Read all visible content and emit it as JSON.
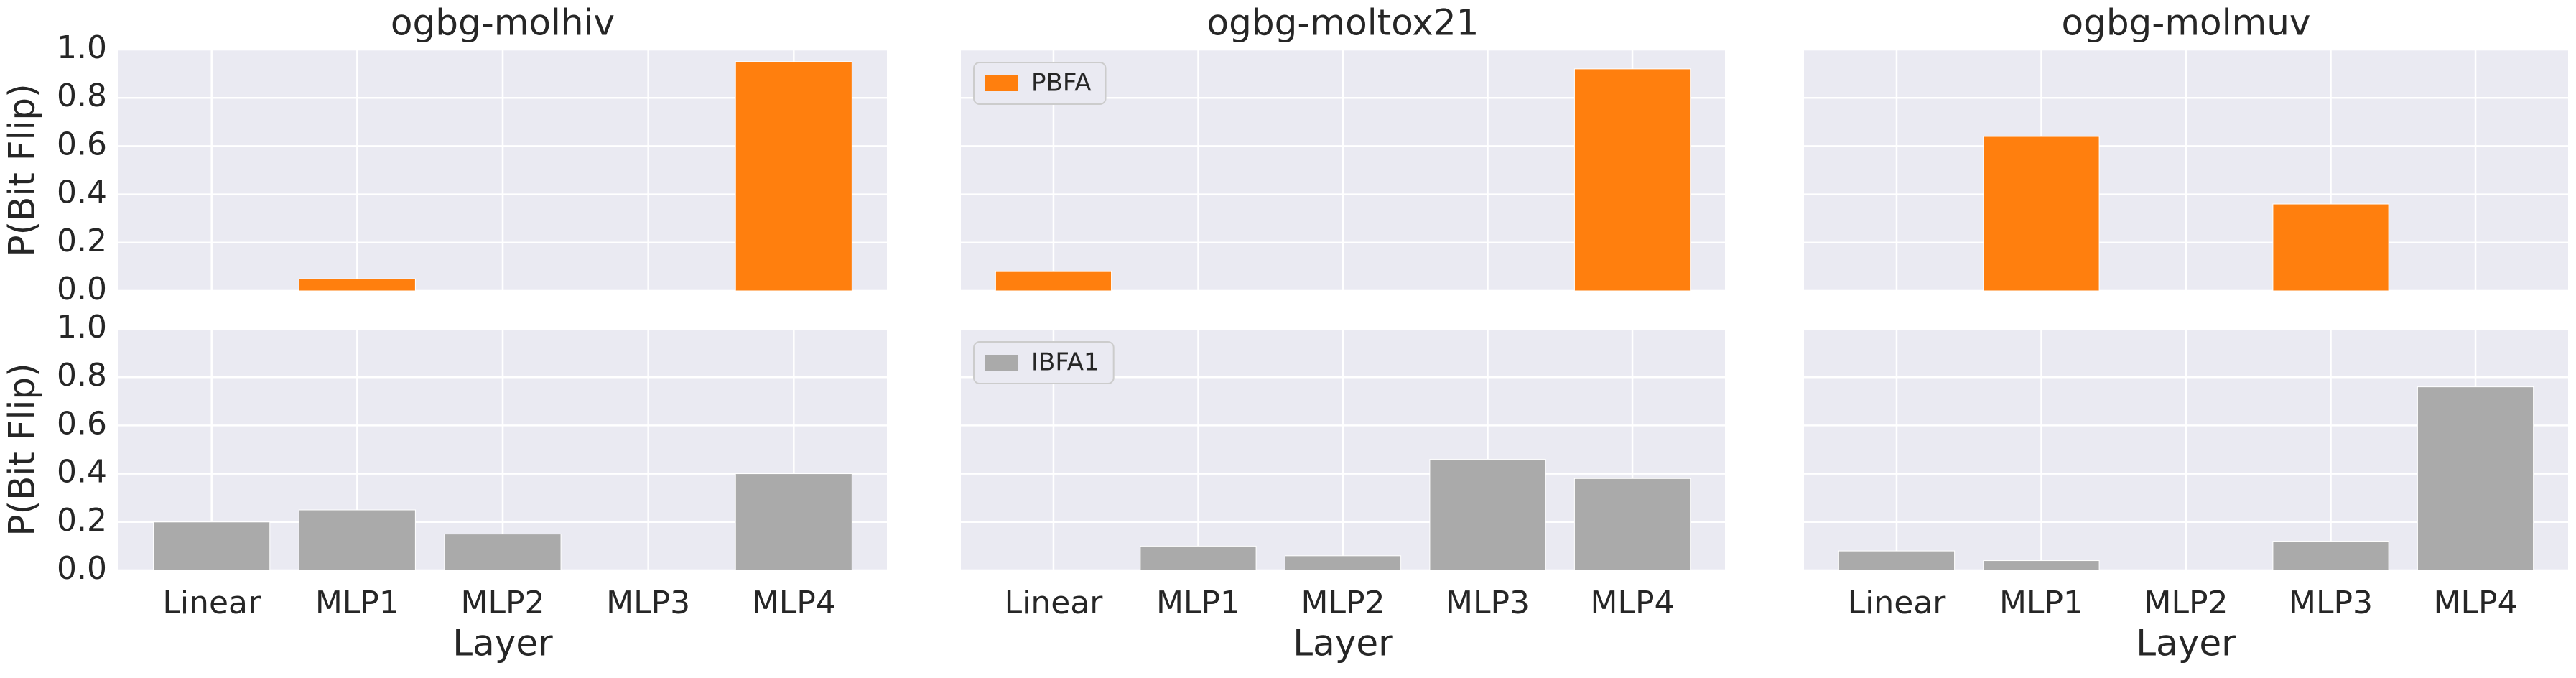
{
  "chart_data": [
    {
      "type": "bar",
      "title": "ogbg-molhiv",
      "ylabel": "P(Bit Flip)",
      "categories": [
        "Linear",
        "MLP1",
        "MLP2",
        "MLP3",
        "MLP4"
      ],
      "series": [
        {
          "color": "#ff7f0e",
          "values": [
            0,
            0.05,
            0,
            0,
            0.95
          ]
        }
      ],
      "ylim": [
        0,
        1
      ],
      "yticks": [
        {
          "value": 0,
          "label": "0.0"
        },
        {
          "value": 0.2,
          "label": "0.2"
        },
        {
          "value": 0.4,
          "label": "0.4"
        },
        {
          "value": 0.6,
          "label": "0.6"
        },
        {
          "value": 0.8,
          "label": "0.8"
        },
        {
          "value": 1,
          "label": "1.0"
        }
      ],
      "grid": true
    },
    {
      "type": "bar",
      "title": "ogbg-moltox21",
      "categories": [
        "Linear",
        "MLP1",
        "MLP2",
        "MLP3",
        "MLP4"
      ],
      "series": [
        {
          "name": "PBFA",
          "color": "#ff7f0e",
          "values": [
            0.08,
            0,
            0,
            0,
            0.92
          ]
        }
      ],
      "ylim": [
        0,
        1
      ],
      "yticks": [
        0,
        0.2,
        0.4,
        0.6,
        0.8,
        1
      ],
      "grid": true,
      "legend": "upper left"
    },
    {
      "type": "bar",
      "title": "ogbg-molmuv",
      "categories": [
        "Linear",
        "MLP1",
        "MLP2",
        "MLP3",
        "MLP4"
      ],
      "series": [
        {
          "color": "#ff7f0e",
          "values": [
            0,
            0.64,
            0,
            0.36,
            0
          ]
        }
      ],
      "ylim": [
        0,
        1
      ],
      "yticks": [
        0,
        0.2,
        0.4,
        0.6,
        0.8,
        1
      ],
      "grid": true
    },
    {
      "type": "bar",
      "xlabel": "Layer",
      "ylabel": "P(Bit Flip)",
      "categories": [
        "Linear",
        "MLP1",
        "MLP2",
        "MLP3",
        "MLP4"
      ],
      "series": [
        {
          "color": "#aaaaaa",
          "values": [
            0.2,
            0.25,
            0.15,
            0,
            0.4
          ]
        }
      ],
      "ylim": [
        0,
        1
      ],
      "yticks": [
        {
          "value": 0,
          "label": "0.0"
        },
        {
          "value": 0.2,
          "label": "0.2"
        },
        {
          "value": 0.4,
          "label": "0.4"
        },
        {
          "value": 0.6,
          "label": "0.6"
        },
        {
          "value": 0.8,
          "label": "0.8"
        },
        {
          "value": 1,
          "label": "1.0"
        }
      ],
      "grid": true
    },
    {
      "type": "bar",
      "xlabel": "Layer",
      "categories": [
        "Linear",
        "MLP1",
        "MLP2",
        "MLP3",
        "MLP4"
      ],
      "series": [
        {
          "name": "IBFA1",
          "color": "#aaaaaa",
          "values": [
            0,
            0.1,
            0.06,
            0.46,
            0.38
          ]
        }
      ],
      "ylim": [
        0,
        1
      ],
      "yticks": [
        0,
        0.2,
        0.4,
        0.6,
        0.8,
        1
      ],
      "grid": true,
      "legend": "upper left"
    },
    {
      "type": "bar",
      "xlabel": "Layer",
      "categories": [
        "Linear",
        "MLP1",
        "MLP2",
        "MLP3",
        "MLP4"
      ],
      "series": [
        {
          "color": "#aaaaaa",
          "values": [
            0.08,
            0.04,
            0,
            0.12,
            0.76
          ]
        }
      ],
      "ylim": [
        0,
        1
      ],
      "yticks": [
        0,
        0.2,
        0.4,
        0.6,
        0.8,
        1
      ],
      "grid": true
    }
  ]
}
